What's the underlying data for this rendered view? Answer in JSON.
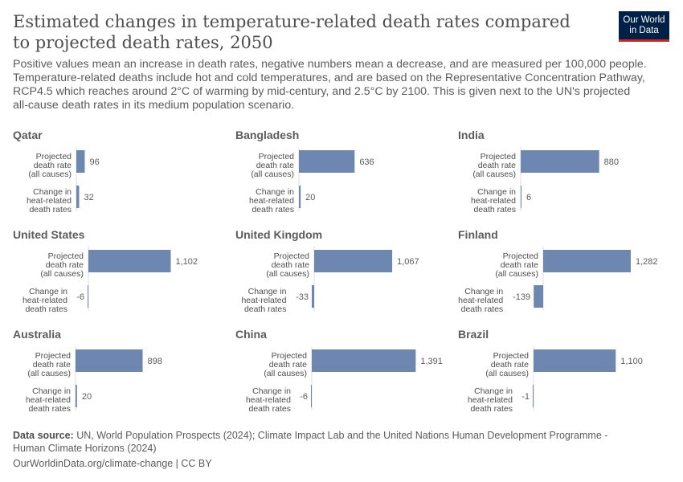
{
  "header": {
    "title": "Estimated changes in temperature-related death rates compared to projected death rates, 2050",
    "subtitle": "Positive values mean an increase in death rates, negative numbers mean a decrease, and are measured per 100,000 people. Temperature-related deaths include hot and cold temperatures, and are based on the Representative Concentration Pathway, RCP4.5 which reaches around 2°C of warming by mid-century, and 2.5°C by 2100. This is given next to the UN's projected all-cause death rates in its medium population scenario.",
    "logo": "Our World in Data"
  },
  "chart_data": {
    "type": "bar",
    "orientation": "horizontal",
    "layout": "small-multiples",
    "categories": [
      "Projected death rate (all causes)",
      "Change in heat-related death rates"
    ],
    "bar_color": "#6d87b0",
    "panels": [
      {
        "title": "Qatar",
        "values": [
          96,
          32
        ],
        "labels": [
          "96",
          "32"
        ]
      },
      {
        "title": "Bangladesh",
        "values": [
          636,
          20
        ],
        "labels": [
          "636",
          "20"
        ]
      },
      {
        "title": "India",
        "values": [
          880,
          6
        ],
        "labels": [
          "880",
          "6"
        ]
      },
      {
        "title": "United States",
        "values": [
          1102,
          -6
        ],
        "labels": [
          "1,102",
          "-6"
        ]
      },
      {
        "title": "United Kingdom",
        "values": [
          1067,
          -33
        ],
        "labels": [
          "1,067",
          "-33"
        ]
      },
      {
        "title": "Finland",
        "values": [
          1282,
          -139
        ],
        "labels": [
          "1,282",
          "-139"
        ]
      },
      {
        "title": "Australia",
        "values": [
          898,
          20
        ],
        "labels": [
          "898",
          "20"
        ]
      },
      {
        "title": "China",
        "values": [
          1391,
          -6
        ],
        "labels": [
          "1,391",
          "-6"
        ]
      },
      {
        "title": "Brazil",
        "values": [
          1100,
          -1
        ],
        "labels": [
          "1,100",
          "-1"
        ]
      }
    ]
  },
  "footer": {
    "source_label": "Data source:",
    "source": "UN, World Population Prospects (2024); Climate Impact Lab and the United Nations Human Development Programme - Human Climate Horizons (2024)",
    "credit": "OurWorldinData.org/climate-change | CC BY"
  }
}
